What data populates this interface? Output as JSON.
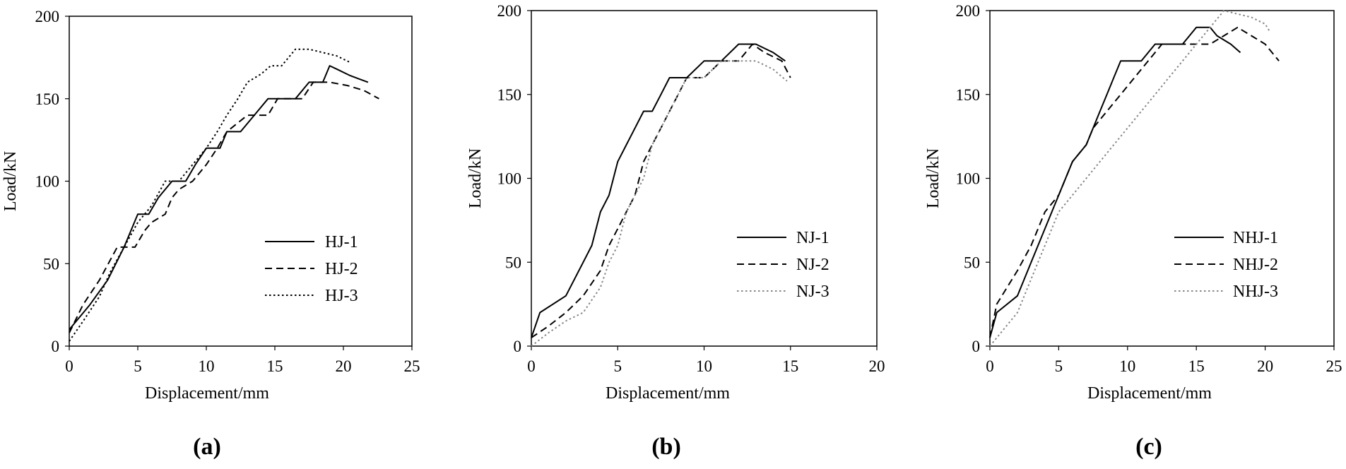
{
  "chart_data": [
    {
      "panel_label": "(a)",
      "type": "line",
      "xlabel": "Displacement/mm",
      "ylabel": "Load/kN",
      "xlim": [
        0,
        25
      ],
      "ylim": [
        0,
        200
      ],
      "x_ticks": [
        "0",
        "5",
        "10",
        "15",
        "20",
        "25"
      ],
      "y_ticks": [
        "0",
        "50",
        "100",
        "150",
        "200"
      ],
      "grid": false,
      "legend_position": "bottom-right",
      "series": [
        {
          "name": "HJ-1",
          "style": "solid",
          "color": "#000000",
          "x": [
            0,
            1.5,
            2.8,
            4,
            5,
            5.8,
            6.5,
            7.5,
            8.5,
            9.2,
            10,
            11,
            11.5,
            12.5,
            13.5,
            14.5,
            16.5,
            17.5,
            18.5,
            19,
            19.5,
            20.5,
            21.8
          ],
          "y": [
            10,
            25,
            40,
            60,
            80,
            80,
            90,
            100,
            100,
            110,
            120,
            120,
            130,
            130,
            140,
            150,
            150,
            160,
            160,
            170,
            168,
            164,
            160
          ]
        },
        {
          "name": "HJ-2",
          "style": "dashed",
          "color": "#000000",
          "x": [
            0,
            1,
            2.2,
            3.5,
            4.8,
            5.5,
            6,
            7,
            7.5,
            8,
            9,
            10,
            10.8,
            11.5,
            13,
            14.5,
            15.2,
            17,
            17.8,
            19,
            20.3,
            21.5,
            22.6
          ],
          "y": [
            8,
            25,
            40,
            60,
            60,
            70,
            75,
            80,
            90,
            95,
            100,
            110,
            120,
            130,
            140,
            140,
            150,
            150,
            160,
            160,
            158,
            155,
            150
          ]
        },
        {
          "name": "HJ-3",
          "style": "dotted",
          "color": "#000000",
          "x": [
            0,
            1,
            2.2,
            3,
            4,
            5,
            6,
            7,
            8,
            9,
            10,
            10.8,
            11.5,
            12.3,
            13,
            14,
            14.7,
            15.5,
            16.5,
            17.5,
            18.5,
            19.5,
            20.5
          ],
          "y": [
            3,
            15,
            30,
            45,
            60,
            75,
            85,
            100,
            100,
            110,
            120,
            130,
            140,
            150,
            160,
            165,
            170,
            170,
            180,
            180,
            178,
            176,
            172
          ]
        }
      ]
    },
    {
      "panel_label": "(b)",
      "type": "line",
      "xlabel": "Displacement/mm",
      "ylabel": "Load/kN",
      "xlim": [
        0,
        20
      ],
      "ylim": [
        0,
        200
      ],
      "x_ticks": [
        "0",
        "5",
        "10",
        "15",
        "20"
      ],
      "y_ticks": [
        "0",
        "50",
        "100",
        "150",
        "200"
      ],
      "grid": false,
      "legend_position": "bottom-right",
      "series": [
        {
          "name": "NJ-1",
          "style": "solid",
          "color": "#000000",
          "x": [
            0,
            0.5,
            2,
            3,
            3.5,
            4,
            4.5,
            5,
            5.5,
            6,
            6.5,
            7,
            7.5,
            8,
            9,
            10,
            11,
            12,
            13,
            14,
            14.7
          ],
          "y": [
            5,
            20,
            30,
            50,
            60,
            80,
            90,
            110,
            120,
            130,
            140,
            140,
            150,
            160,
            160,
            170,
            170,
            180,
            180,
            175,
            170
          ]
        },
        {
          "name": "NJ-2",
          "style": "dashed",
          "color": "#000000",
          "x": [
            0,
            1,
            2,
            3,
            4,
            4.5,
            5,
            5.5,
            6,
            6.5,
            7,
            7.5,
            8,
            8.5,
            9,
            10,
            11,
            12,
            12.8,
            13.5,
            14.5,
            15
          ],
          "y": [
            5,
            12,
            20,
            30,
            45,
            60,
            70,
            80,
            90,
            110,
            120,
            130,
            140,
            150,
            160,
            160,
            170,
            170,
            180,
            175,
            170,
            160
          ]
        },
        {
          "name": "NJ-3",
          "style": "dotted",
          "color": "#888888",
          "x": [
            0,
            1,
            2,
            3,
            4,
            4.5,
            5,
            5.5,
            6,
            6.5,
            7,
            7.5,
            8,
            8.5,
            9,
            10,
            11,
            12,
            13,
            14,
            14.8
          ],
          "y": [
            0,
            8,
            15,
            20,
            35,
            50,
            60,
            80,
            90,
            100,
            120,
            130,
            140,
            150,
            160,
            160,
            170,
            170,
            170,
            165,
            158
          ]
        }
      ]
    },
    {
      "panel_label": "(c)",
      "type": "line",
      "xlabel": "Displacement/mm",
      "ylabel": "Load/kN",
      "xlim": [
        0,
        25
      ],
      "ylim": [
        0,
        200
      ],
      "x_ticks": [
        "0",
        "5",
        "10",
        "15",
        "20",
        "25"
      ],
      "y_ticks": [
        "0",
        "50",
        "100",
        "150",
        "200"
      ],
      "grid": false,
      "legend_position": "bottom-right",
      "series": [
        {
          "name": "NHJ-1",
          "style": "solid",
          "color": "#000000",
          "x": [
            0,
            0.5,
            2,
            3,
            4,
            5,
            6,
            7,
            7.5,
            8,
            8.5,
            9,
            9.5,
            10,
            11,
            12,
            13,
            14,
            15,
            16,
            16.5,
            17.5,
            18.2
          ],
          "y": [
            5,
            20,
            30,
            50,
            70,
            90,
            110,
            120,
            130,
            140,
            150,
            160,
            170,
            170,
            170,
            180,
            180,
            180,
            190,
            190,
            185,
            180,
            175
          ]
        },
        {
          "name": "NHJ-2",
          "style": "dashed",
          "color": "#000000",
          "x": [
            0,
            0.5,
            2,
            3,
            4,
            5,
            6,
            7,
            7.5,
            8.5,
            9.5,
            10.5,
            11.5,
            12.5,
            13.5,
            15,
            16,
            17,
            18,
            19,
            20,
            21
          ],
          "y": [
            5,
            25,
            45,
            60,
            80,
            90,
            110,
            120,
            130,
            140,
            150,
            160,
            170,
            180,
            180,
            180,
            180,
            185,
            190,
            185,
            180,
            170
          ]
        },
        {
          "name": "NHJ-3",
          "style": "dotted",
          "color": "#888888",
          "x": [
            0,
            1,
            2,
            3,
            4,
            5,
            6,
            7,
            8,
            9,
            10,
            11,
            12,
            13,
            14,
            15,
            16,
            17,
            18,
            19,
            20,
            20.3
          ],
          "y": [
            0,
            10,
            20,
            40,
            60,
            80,
            90,
            100,
            110,
            120,
            130,
            140,
            150,
            160,
            170,
            180,
            190,
            200,
            198,
            196,
            192,
            188
          ]
        }
      ]
    }
  ]
}
